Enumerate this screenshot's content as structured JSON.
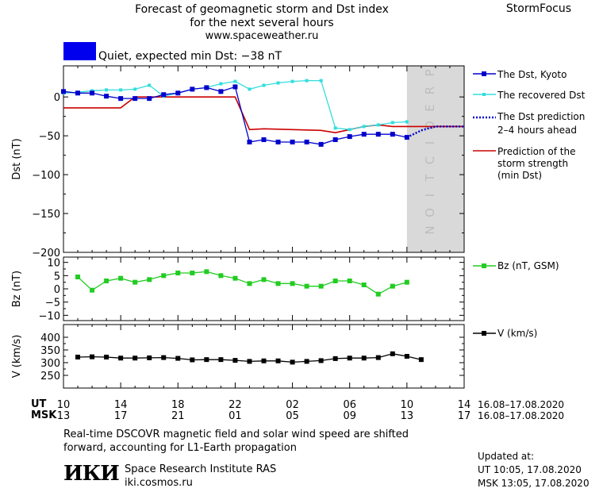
{
  "header": {
    "title_line1": "Forecast of geomagnetic storm and Dst index",
    "title_line2": "for the next several hours",
    "url": "www.spaceweather.ru",
    "brand": "StormFocus"
  },
  "status": {
    "text": "Quiet, expected min Dst: −38 nT",
    "color": "#0000ee"
  },
  "colors": {
    "dst": "#0000cc",
    "recovered": "#33dddd",
    "predicted": "#0000cc",
    "strength": "#cc0000",
    "bz": "#22cc22",
    "v": "#000000",
    "prediction_band": "#d9d9d9"
  },
  "legend": {
    "dst": "The Dst, Kyoto",
    "recovered": "The recovered Dst",
    "prediction_l1": "The Dst prediction",
    "prediction_l2": "2–4 hours ahead",
    "strength_l1": "Prediction of the",
    "strength_l2": "storm strength",
    "strength_l3": "(min Dst)",
    "bz": "Bz (nT, GSM)",
    "v": "V (km/s)"
  },
  "prediction_label": "PREDICTION",
  "time_axis": {
    "ut_label": "UT",
    "msk_label": "MSK",
    "ut_ticks": [
      "10",
      "14",
      "18",
      "22",
      "02",
      "06",
      "10",
      "14"
    ],
    "msk_ticks": [
      "13",
      "17",
      "21",
      "01",
      "05",
      "09",
      "13",
      "17"
    ],
    "ut_range": "16.08–17.08.2020",
    "msk_range": "16.08–17.08.2020"
  },
  "footer": {
    "note_l1": "Real-time DSCOVR magnetic field and solar wind speed are shifted",
    "note_l2": "forward, accounting for L1-Earth propagation",
    "institute": "Space Research Institute RAS",
    "site": "iki.cosmos.ru",
    "logo": "ИКИ",
    "updated_label": "Updated at:",
    "updated_ut": "UT   10:05, 17.08.2020",
    "updated_msk": "MSK 13:05, 17.08.2020"
  },
  "chart_data": [
    {
      "type": "line",
      "ylabel": "Dst (nT)",
      "ylim": [
        -200,
        40
      ],
      "yticks": [
        "0",
        "−50",
        "−100",
        "−150",
        "−200"
      ],
      "ytick_values": [
        0,
        -50,
        -100,
        -150,
        -200
      ],
      "x_unit": "hours since 10 UT",
      "xlim": [
        0,
        28
      ],
      "prediction_start": 24,
      "series": [
        {
          "name": "The Dst, Kyoto",
          "x": [
            0,
            1,
            2,
            3,
            4,
            5,
            6,
            7,
            8,
            9,
            10,
            11,
            12,
            13,
            14,
            15,
            16,
            17,
            18,
            19,
            20,
            21,
            22,
            23,
            24
          ],
          "values": [
            7,
            5,
            5,
            1,
            -2,
            -2,
            -2,
            3,
            5,
            10,
            12,
            7,
            13,
            -58,
            -55,
            -58,
            -58,
            -58,
            -61,
            -55,
            -51,
            -48,
            -48,
            -48,
            -52
          ]
        },
        {
          "name": "The recovered Dst",
          "x": [
            0,
            1,
            2,
            3,
            4,
            5,
            6,
            7,
            8,
            9,
            10,
            11,
            12,
            13,
            14,
            15,
            16,
            17,
            18,
            19,
            20,
            21,
            22,
            23,
            24
          ],
          "values": [
            5,
            6,
            8,
            9,
            9,
            10,
            15,
            1,
            5,
            10,
            12,
            17,
            20,
            10,
            15,
            18,
            20,
            21,
            21,
            -40,
            -42,
            -38,
            -36,
            -33,
            -32
          ]
        },
        {
          "name": "The Dst prediction 2–4 hours ahead",
          "x": [
            24,
            25,
            26,
            27,
            28
          ],
          "values": [
            -52,
            -43,
            -38,
            -38,
            -38
          ]
        },
        {
          "name": "Prediction of the storm strength (min Dst)",
          "x": [
            0,
            4,
            5,
            12,
            13,
            14,
            16,
            18,
            19,
            20,
            21,
            22,
            23,
            24,
            25,
            26,
            28
          ],
          "values": [
            -14,
            -14,
            0,
            0,
            -42,
            -41,
            -42,
            -43,
            -46,
            -42,
            -38,
            -36,
            -38,
            -38,
            -38,
            -38,
            -38
          ]
        }
      ]
    },
    {
      "type": "line",
      "ylabel": "Bz (nT)",
      "ylim": [
        -12,
        12
      ],
      "yticks": [
        "10",
        "5",
        "0",
        "−5",
        "−10"
      ],
      "ytick_values": [
        10,
        5,
        0,
        -5,
        -10
      ],
      "series": [
        {
          "name": "Bz (nT, GSM)",
          "x": [
            1,
            2,
            3,
            4,
            5,
            6,
            7,
            8,
            9,
            10,
            11,
            12,
            13,
            14,
            15,
            16,
            17,
            18,
            19,
            20,
            21,
            22,
            23,
            24,
            25
          ],
          "values": [
            4.5,
            -0.5,
            3.0,
            4.0,
            2.5,
            3.5,
            5.0,
            6.0,
            6.0,
            6.5,
            5.0,
            4.0,
            2.0,
            3.5,
            2.0,
            2.0,
            1.0,
            1.0,
            3.0,
            3.0,
            1.5,
            -2.0,
            1.0,
            2.5,
            null
          ]
        }
      ]
    },
    {
      "type": "line",
      "ylabel": "V (km/s)",
      "ylim": [
        200,
        450
      ],
      "yticks": [
        "400",
        "350",
        "300",
        "250"
      ],
      "ytick_values": [
        400,
        350,
        300,
        250
      ],
      "series": [
        {
          "name": "V (km/s)",
          "x": [
            1,
            2,
            3,
            4,
            5,
            6,
            7,
            8,
            9,
            10,
            11,
            12,
            13,
            14,
            15,
            16,
            17,
            18,
            19,
            20,
            21,
            22,
            23,
            24,
            25
          ],
          "values": [
            322,
            323,
            322,
            318,
            318,
            319,
            320,
            317,
            311,
            312,
            312,
            309,
            305,
            307,
            307,
            302,
            305,
            308,
            316,
            318,
            318,
            320,
            335,
            325,
            312
          ]
        }
      ]
    }
  ]
}
